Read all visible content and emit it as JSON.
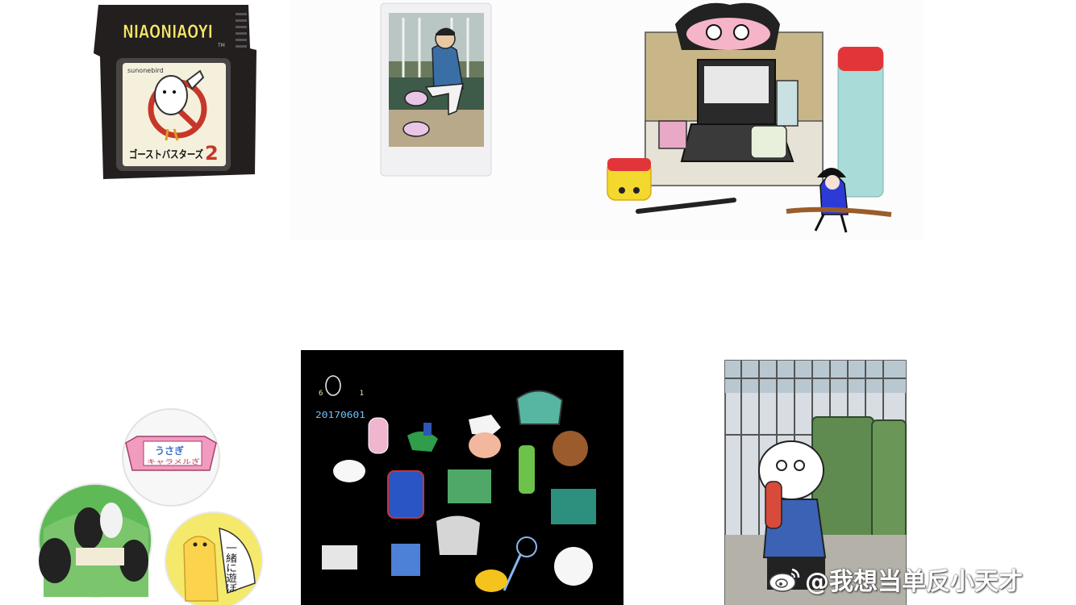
{
  "gallery": {
    "items": [
      {
        "name": "game-cartridge",
        "logo": "NIAONIAOYI",
        "tm": "TM",
        "artist": "sunonebird",
        "title_jp": "ゴーストバスターズ",
        "number": "2"
      },
      {
        "name": "instant-photo"
      },
      {
        "name": "desk-diorama"
      },
      {
        "name": "pin-badges",
        "badge_text_1": "うさぎ",
        "badge_text_2": "キャラメルぎ",
        "badge_text_3": "一緒に遊ぼ"
      },
      {
        "name": "clay-brooches",
        "date_label": "20170601",
        "small_label": "6 1"
      },
      {
        "name": "trash-bin-illustration"
      }
    ]
  },
  "watermark": {
    "text": "@我想当单反小天才",
    "icon": "weibo-icon"
  },
  "colors": {
    "background": "#ffffff",
    "cartridge": "#231f1f",
    "cartridge_label": "#f5f0dc",
    "logo_yellow": "#f3e36a",
    "black_panel": "#000000",
    "thermos_red": "#e2353a",
    "thermos_teal": "#a9dcd8"
  }
}
